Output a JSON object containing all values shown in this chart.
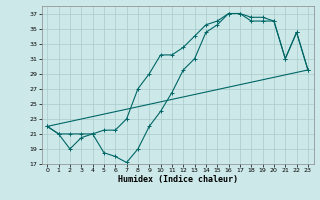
{
  "xlabel": "Humidex (Indice chaleur)",
  "background_color": "#cde8e8",
  "grid_color": "#aacccc",
  "line_color": "#006666",
  "xlim": [
    -0.5,
    23.5
  ],
  "ylim": [
    17,
    38
  ],
  "yticks": [
    17,
    19,
    21,
    23,
    25,
    27,
    29,
    31,
    33,
    35,
    37
  ],
  "xticks": [
    0,
    1,
    2,
    3,
    4,
    5,
    6,
    7,
    8,
    9,
    10,
    11,
    12,
    13,
    14,
    15,
    16,
    17,
    18,
    19,
    20,
    21,
    22,
    23
  ],
  "line1_x": [
    0,
    1,
    2,
    3,
    4,
    5,
    6,
    7,
    8,
    9,
    10,
    11,
    12,
    13,
    14,
    15,
    16,
    17,
    18,
    19,
    20,
    21,
    22,
    23
  ],
  "line1_y": [
    22.0,
    21.0,
    19.0,
    20.5,
    21.0,
    18.5,
    18.0,
    17.2,
    19.0,
    22.0,
    24.0,
    26.5,
    29.5,
    31.0,
    34.5,
    35.5,
    37.0,
    37.0,
    36.0,
    36.0,
    36.0,
    31.0,
    34.5,
    29.5
  ],
  "line2_x": [
    0,
    1,
    2,
    3,
    4,
    5,
    6,
    7,
    8,
    9,
    10,
    11,
    12,
    13,
    14,
    15,
    16,
    17,
    18,
    19,
    20,
    21,
    22,
    23
  ],
  "line2_y": [
    22.0,
    21.0,
    21.0,
    21.0,
    21.0,
    21.5,
    21.5,
    23.0,
    27.0,
    29.0,
    31.5,
    31.5,
    32.5,
    34.0,
    35.5,
    36.0,
    37.0,
    37.0,
    36.5,
    36.5,
    36.0,
    31.0,
    34.5,
    29.5
  ],
  "line3_x": [
    0,
    23
  ],
  "line3_y": [
    22.0,
    29.5
  ],
  "xlabel_fontsize": 6.0,
  "tick_fontsize": 4.5,
  "linewidth": 0.8,
  "markersize": 2.5
}
